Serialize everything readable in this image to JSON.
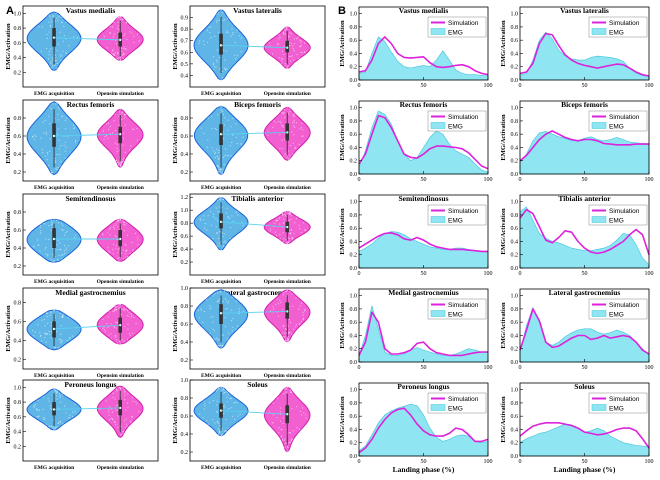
{
  "panel_labels": {
    "a": "A",
    "b": "B"
  },
  "colors": {
    "emg_violin_fill": "#5fb6e6",
    "emg_violin_edge": "#1a63d8",
    "sim_violin_fill": "#f25fd0",
    "sim_violin_edge": "#d21fb0",
    "simulation_line": "#dd22dd",
    "emg_area_fill": "#8fe6f2",
    "emg_area_edge": "#3cc4d8",
    "mean_link": "#5ad0f0"
  },
  "chart_data": [
    {
      "type": "violin",
      "group": "A",
      "ylabel": "EMG/Activation",
      "categories": [
        "EMG acquisition",
        "Opensim simulation"
      ],
      "panels": [
        {
          "title": "Vastus medialis",
          "ylim": [
            0.0,
            1.1
          ],
          "ticks": [
            0.2,
            0.4,
            0.6,
            0.8,
            1.0
          ],
          "emg": {
            "min": 0.22,
            "max": 1.02,
            "q1": 0.55,
            "median": 0.67,
            "q3": 0.8,
            "mean": 0.67
          },
          "sim": {
            "min": 0.36,
            "max": 0.96,
            "q1": 0.55,
            "median": 0.64,
            "q3": 0.74,
            "mean": 0.64
          }
        },
        {
          "title": "Vastus lateralis",
          "ylim": [
            0.3,
            1.0
          ],
          "ticks": [
            0.4,
            0.5,
            0.6,
            0.7,
            0.8,
            0.9
          ],
          "emg": {
            "min": 0.36,
            "max": 0.97,
            "q1": 0.58,
            "median": 0.66,
            "q3": 0.76,
            "mean": 0.66
          },
          "sim": {
            "min": 0.46,
            "max": 0.82,
            "q1": 0.6,
            "median": 0.64,
            "q3": 0.7,
            "mean": 0.64
          }
        },
        {
          "title": "Rectus femoris",
          "ylim": [
            0.1,
            1.0
          ],
          "ticks": [
            0.2,
            0.4,
            0.6,
            0.8
          ],
          "emg": {
            "min": 0.17,
            "max": 0.98,
            "q1": 0.48,
            "median": 0.6,
            "q3": 0.74,
            "mean": 0.6
          },
          "sim": {
            "min": 0.25,
            "max": 0.9,
            "q1": 0.52,
            "median": 0.62,
            "q3": 0.7,
            "mean": 0.62
          }
        },
        {
          "title": "Biceps femoris",
          "ylim": [
            0.1,
            1.0
          ],
          "ticks": [
            0.2,
            0.4,
            0.6,
            0.8
          ],
          "emg": {
            "min": 0.17,
            "max": 0.93,
            "q1": 0.5,
            "median": 0.62,
            "q3": 0.73,
            "mean": 0.62
          },
          "sim": {
            "min": 0.33,
            "max": 0.92,
            "q1": 0.55,
            "median": 0.64,
            "q3": 0.74,
            "mean": 0.64
          }
        },
        {
          "title": "Semitendinosus",
          "ylim": [
            0.1,
            1.0
          ],
          "ticks": [
            0.2,
            0.4,
            0.6,
            0.8
          ],
          "emg": {
            "min": 0.24,
            "max": 0.72,
            "q1": 0.4,
            "median": 0.5,
            "q3": 0.62,
            "mean": 0.5
          },
          "sim": {
            "min": 0.25,
            "max": 0.72,
            "q1": 0.42,
            "median": 0.5,
            "q3": 0.6,
            "mean": 0.5
          }
        },
        {
          "title": "Tibialis anterior",
          "ylim": [
            0.0,
            1.25
          ],
          "ticks": [
            0.2,
            0.4,
            0.6,
            0.8,
            1.0,
            1.2
          ],
          "emg": {
            "min": 0.38,
            "max": 1.2,
            "q1": 0.72,
            "median": 0.82,
            "q3": 0.95,
            "mean": 0.82
          },
          "sim": {
            "min": 0.48,
            "max": 0.98,
            "q1": 0.66,
            "median": 0.74,
            "q3": 0.82,
            "mean": 0.74
          }
        },
        {
          "title": "Medial gastrocnemius",
          "ylim": [
            0.1,
            0.95
          ],
          "ticks": [
            0.2,
            0.4,
            0.6,
            0.8
          ],
          "emg": {
            "min": 0.3,
            "max": 0.72,
            "q1": 0.43,
            "median": 0.52,
            "q3": 0.6,
            "mean": 0.52
          },
          "sim": {
            "min": 0.36,
            "max": 0.78,
            "q1": 0.48,
            "median": 0.56,
            "q3": 0.64,
            "mean": 0.56
          }
        },
        {
          "title": "Lateral gastrocnemius",
          "ylim": [
            0.1,
            1.0
          ],
          "ticks": [
            0.2,
            0.4,
            0.6,
            0.8,
            1.0
          ],
          "emg": {
            "min": 0.33,
            "max": 0.98,
            "q1": 0.6,
            "median": 0.72,
            "q3": 0.82,
            "mean": 0.72
          },
          "sim": {
            "min": 0.4,
            "max": 0.98,
            "q1": 0.66,
            "median": 0.74,
            "q3": 0.84,
            "mean": 0.74
          }
        },
        {
          "title": "Peroneus longus",
          "ylim": [
            0.0,
            1.1
          ],
          "ticks": [
            0.2,
            0.4,
            0.6,
            0.8,
            1.0
          ],
          "emg": {
            "min": 0.42,
            "max": 0.98,
            "q1": 0.62,
            "median": 0.7,
            "q3": 0.8,
            "mean": 0.7
          },
          "sim": {
            "min": 0.32,
            "max": 1.02,
            "q1": 0.62,
            "median": 0.72,
            "q3": 0.83,
            "mean": 0.72
          }
        },
        {
          "title": "Soleus",
          "ylim": [
            0.1,
            1.0
          ],
          "ticks": [
            0.2,
            0.4,
            0.6,
            0.8,
            1.0
          ],
          "emg": {
            "min": 0.38,
            "max": 0.92,
            "q1": 0.58,
            "median": 0.66,
            "q3": 0.74,
            "mean": 0.66
          },
          "sim": {
            "min": 0.2,
            "max": 0.92,
            "q1": 0.52,
            "median": 0.62,
            "q3": 0.72,
            "mean": 0.62
          }
        }
      ]
    },
    {
      "type": "area+line",
      "group": "B",
      "xlabel": "Landing phase (%)",
      "ylabel": "EMG/Activation",
      "legend": [
        "Simulation",
        "EMG"
      ],
      "x": [
        0,
        5,
        10,
        15,
        20,
        25,
        30,
        35,
        40,
        45,
        50,
        55,
        60,
        65,
        70,
        75,
        80,
        85,
        90,
        95,
        100
      ],
      "xlim": [
        0,
        100
      ],
      "xticks": [
        0,
        50,
        100
      ],
      "ylim": [
        0,
        1.1
      ],
      "yticks": [
        0.0,
        0.2,
        0.4,
        0.6,
        0.8,
        1.0
      ],
      "panels": [
        {
          "title": "Vastus medialis",
          "sim": [
            0.12,
            0.14,
            0.3,
            0.55,
            0.65,
            0.55,
            0.4,
            0.34,
            0.33,
            0.34,
            0.35,
            0.26,
            0.2,
            0.19,
            0.2,
            0.22,
            0.23,
            0.2,
            0.14,
            0.1,
            0.08
          ],
          "emg": [
            0.1,
            0.12,
            0.4,
            0.65,
            0.58,
            0.42,
            0.28,
            0.2,
            0.18,
            0.2,
            0.22,
            0.2,
            0.3,
            0.44,
            0.3,
            0.15,
            0.1,
            0.08,
            0.08,
            0.07,
            0.06
          ]
        },
        {
          "title": "Vastus lateralis",
          "sim": [
            0.1,
            0.12,
            0.25,
            0.55,
            0.7,
            0.68,
            0.52,
            0.38,
            0.3,
            0.25,
            0.22,
            0.2,
            0.18,
            0.2,
            0.22,
            0.24,
            0.23,
            0.18,
            0.12,
            0.08,
            0.06
          ],
          "emg": [
            0.08,
            0.1,
            0.3,
            0.6,
            0.72,
            0.62,
            0.45,
            0.36,
            0.32,
            0.3,
            0.3,
            0.34,
            0.36,
            0.35,
            0.34,
            0.32,
            0.28,
            0.18,
            0.1,
            0.07,
            0.05
          ]
        },
        {
          "title": "Rectus femoris",
          "sim": [
            0.15,
            0.3,
            0.6,
            0.88,
            0.85,
            0.7,
            0.5,
            0.3,
            0.25,
            0.24,
            0.3,
            0.38,
            0.42,
            0.42,
            0.41,
            0.4,
            0.38,
            0.32,
            0.22,
            0.12,
            0.08
          ],
          "emg": [
            0.1,
            0.35,
            0.7,
            0.95,
            0.9,
            0.75,
            0.5,
            0.3,
            0.2,
            0.25,
            0.4,
            0.55,
            0.65,
            0.6,
            0.45,
            0.35,
            0.3,
            0.25,
            0.15,
            0.06,
            0.03
          ]
        },
        {
          "title": "Biceps femoris",
          "sim": [
            0.2,
            0.28,
            0.4,
            0.52,
            0.6,
            0.65,
            0.6,
            0.55,
            0.52,
            0.5,
            0.52,
            0.52,
            0.5,
            0.46,
            0.45,
            0.44,
            0.44,
            0.44,
            0.45,
            0.45,
            0.45
          ],
          "emg": [
            0.18,
            0.3,
            0.5,
            0.62,
            0.64,
            0.6,
            0.56,
            0.54,
            0.5,
            0.5,
            0.54,
            0.56,
            0.52,
            0.5,
            0.52,
            0.55,
            0.52,
            0.48,
            0.47,
            0.46,
            0.46
          ]
        },
        {
          "title": "Semitendinosus",
          "sim": [
            0.3,
            0.36,
            0.42,
            0.48,
            0.52,
            0.53,
            0.5,
            0.44,
            0.42,
            0.46,
            0.42,
            0.36,
            0.32,
            0.3,
            0.28,
            0.28,
            0.28,
            0.27,
            0.26,
            0.25,
            0.25
          ],
          "emg": [
            0.25,
            0.3,
            0.36,
            0.45,
            0.52,
            0.55,
            0.54,
            0.5,
            0.44,
            0.4,
            0.36,
            0.32,
            0.3,
            0.28,
            0.28,
            0.3,
            0.3,
            0.28,
            0.26,
            0.25,
            0.24
          ]
        },
        {
          "title": "Tibialis anterior",
          "sim": [
            0.75,
            0.88,
            0.82,
            0.62,
            0.42,
            0.38,
            0.46,
            0.56,
            0.54,
            0.4,
            0.3,
            0.24,
            0.22,
            0.24,
            0.28,
            0.34,
            0.4,
            0.5,
            0.58,
            0.5,
            0.2
          ],
          "emg": [
            0.85,
            0.92,
            0.72,
            0.52,
            0.45,
            0.4,
            0.38,
            0.34,
            0.3,
            0.28,
            0.26,
            0.26,
            0.28,
            0.3,
            0.34,
            0.42,
            0.52,
            0.5,
            0.35,
            0.15,
            0.05
          ]
        },
        {
          "title": "Medial gastrocnemius",
          "sim": [
            0.1,
            0.3,
            0.75,
            0.6,
            0.2,
            0.12,
            0.12,
            0.14,
            0.18,
            0.28,
            0.3,
            0.2,
            0.14,
            0.12,
            0.1,
            0.1,
            0.1,
            0.12,
            0.14,
            0.15,
            0.15
          ],
          "emg": [
            0.1,
            0.4,
            0.85,
            0.5,
            0.15,
            0.1,
            0.1,
            0.12,
            0.18,
            0.22,
            0.18,
            0.15,
            0.12,
            0.1,
            0.1,
            0.12,
            0.16,
            0.2,
            0.18,
            0.15,
            0.14
          ]
        },
        {
          "title": "Lateral gastrocnemius",
          "sim": [
            0.18,
            0.48,
            0.8,
            0.62,
            0.3,
            0.22,
            0.24,
            0.3,
            0.36,
            0.4,
            0.4,
            0.34,
            0.36,
            0.4,
            0.36,
            0.38,
            0.4,
            0.38,
            0.3,
            0.18,
            0.12
          ],
          "emg": [
            0.15,
            0.55,
            0.82,
            0.6,
            0.3,
            0.25,
            0.3,
            0.38,
            0.44,
            0.48,
            0.5,
            0.5,
            0.45,
            0.42,
            0.44,
            0.48,
            0.45,
            0.4,
            0.3,
            0.2,
            0.1
          ]
        },
        {
          "title": "Peroneus longus",
          "sim": [
            0.05,
            0.12,
            0.25,
            0.42,
            0.55,
            0.65,
            0.7,
            0.72,
            0.62,
            0.48,
            0.38,
            0.32,
            0.3,
            0.3,
            0.34,
            0.42,
            0.4,
            0.32,
            0.22,
            0.22,
            0.25
          ],
          "emg": [
            0.08,
            0.15,
            0.32,
            0.5,
            0.62,
            0.68,
            0.72,
            0.75,
            0.78,
            0.76,
            0.62,
            0.42,
            0.28,
            0.22,
            0.25,
            0.3,
            0.32,
            0.3,
            0.22,
            0.2,
            0.22
          ]
        },
        {
          "title": "Soleus",
          "sim": [
            0.3,
            0.38,
            0.45,
            0.48,
            0.5,
            0.5,
            0.5,
            0.48,
            0.46,
            0.42,
            0.36,
            0.34,
            0.32,
            0.33,
            0.36,
            0.4,
            0.42,
            0.42,
            0.38,
            0.26,
            0.12
          ],
          "emg": [
            0.2,
            0.26,
            0.3,
            0.34,
            0.36,
            0.4,
            0.44,
            0.48,
            0.47,
            0.42,
            0.36,
            0.38,
            0.42,
            0.38,
            0.3,
            0.25,
            0.2,
            0.18,
            0.16,
            0.15,
            0.14
          ]
        }
      ]
    }
  ]
}
